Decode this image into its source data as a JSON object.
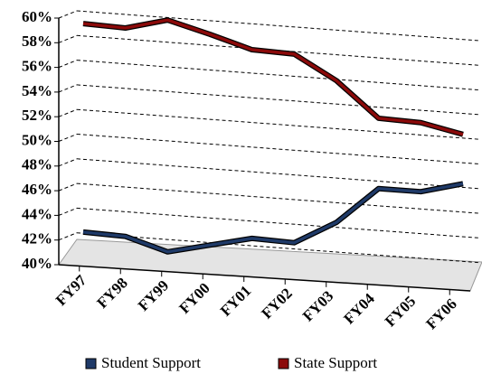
{
  "chart_data": {
    "type": "line",
    "categories": [
      "FY97",
      "FY98",
      "FY99",
      "FY00",
      "FY01",
      "FY02",
      "FY03",
      "FY04",
      "FY05",
      "FY06"
    ],
    "series": [
      {
        "name": "Student Support",
        "color": "#1f3a68",
        "values": [
          42.1,
          42.0,
          41.0,
          41.8,
          42.6,
          42.5,
          44.4,
          47.4,
          47.4,
          48.3
        ]
      },
      {
        "name": "State Support",
        "color": "#8b0a0a",
        "values": [
          59.0,
          58.9,
          59.8,
          58.9,
          57.9,
          57.8,
          55.9,
          53.1,
          53.0,
          52.3
        ]
      }
    ],
    "ylim": [
      40,
      60
    ],
    "yticks": [
      {
        "value": 40,
        "label": "40%"
      },
      {
        "value": 42,
        "label": "42%"
      },
      {
        "value": 44,
        "label": "44%"
      },
      {
        "value": 46,
        "label": "46%"
      },
      {
        "value": 48,
        "label": "48%"
      },
      {
        "value": 50,
        "label": "50%"
      },
      {
        "value": 52,
        "label": "52%"
      },
      {
        "value": 54,
        "label": "54%"
      },
      {
        "value": 56,
        "label": "56%"
      },
      {
        "value": 58,
        "label": "58%"
      },
      {
        "value": 60,
        "label": "60%"
      }
    ],
    "grid": true,
    "legend": "bottom"
  }
}
